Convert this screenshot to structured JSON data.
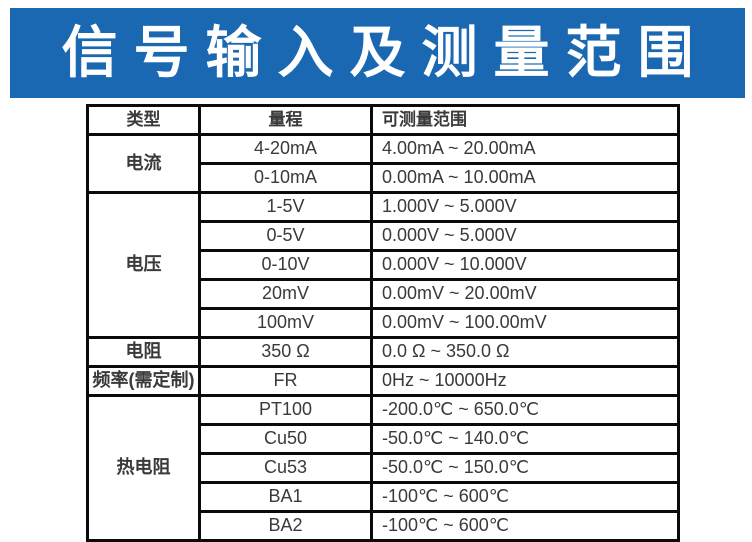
{
  "banner": {
    "title": "信号输入及测量范围",
    "bg_color": "#1a68b2",
    "text_color": "#ffffff"
  },
  "table": {
    "border_color": "#0a0a0a",
    "text_color": "#3a3a3a",
    "columns": [
      "类型",
      "量程",
      "可测量范围"
    ],
    "groups": [
      {
        "type": "电流",
        "rows": [
          {
            "range": "4-20mA",
            "measurable": "4.00mA ~ 20.00mA"
          },
          {
            "range": "0-10mA",
            "measurable": "0.00mA ~ 10.00mA"
          }
        ]
      },
      {
        "type": "电压",
        "rows": [
          {
            "range": "1-5V",
            "measurable": "1.000V ~ 5.000V"
          },
          {
            "range": "0-5V",
            "measurable": "0.000V ~ 5.000V"
          },
          {
            "range": "0-10V",
            "measurable": "0.000V ~ 10.000V"
          },
          {
            "range": "20mV",
            "measurable": "0.00mV ~ 20.00mV"
          },
          {
            "range": "100mV",
            "measurable": "0.00mV ~ 100.00mV"
          }
        ]
      },
      {
        "type": "电阻",
        "rows": [
          {
            "range": "350 Ω",
            "measurable": "0.0 Ω ~ 350.0 Ω"
          }
        ]
      },
      {
        "type": "频率(需定制)",
        "rows": [
          {
            "range": "FR",
            "measurable": "0Hz ~ 10000Hz"
          }
        ]
      },
      {
        "type": "热电阻",
        "rows": [
          {
            "range": "PT100",
            "measurable": "-200.0℃ ~ 650.0℃"
          },
          {
            "range": "Cu50",
            "measurable": "-50.0℃ ~ 140.0℃"
          },
          {
            "range": "Cu53",
            "measurable": "-50.0℃ ~ 150.0℃"
          },
          {
            "range": "BA1",
            "measurable": "-100℃ ~ 600℃"
          },
          {
            "range": "BA2",
            "measurable": "-100℃ ~ 600℃"
          }
        ]
      }
    ]
  }
}
